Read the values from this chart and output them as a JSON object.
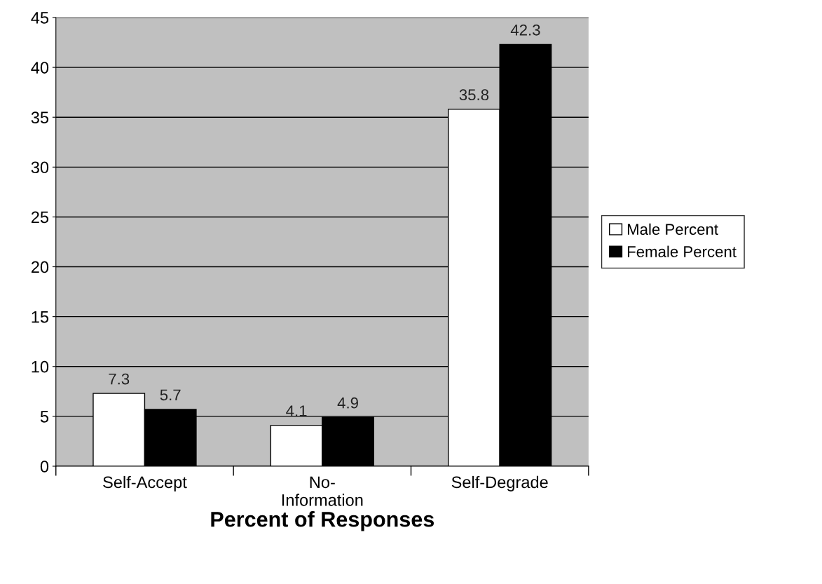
{
  "chart_data": {
    "type": "bar",
    "xlabel": "Percent of Responses",
    "categories": [
      "Self-Accept",
      "No-\nInformation",
      "Self-Degrade"
    ],
    "series": [
      {
        "name": "Male Percent",
        "color": "#ffffff",
        "values": [
          7.3,
          4.1,
          35.8
        ]
      },
      {
        "name": "Female Percent",
        "color": "#000000",
        "values": [
          5.7,
          4.9,
          42.3
        ]
      }
    ],
    "ylim": [
      0,
      45
    ],
    "yticks": [
      0,
      5,
      10,
      15,
      20,
      25,
      30,
      35,
      40,
      45
    ],
    "grid": "y",
    "legend": "right",
    "data_labels": true
  }
}
